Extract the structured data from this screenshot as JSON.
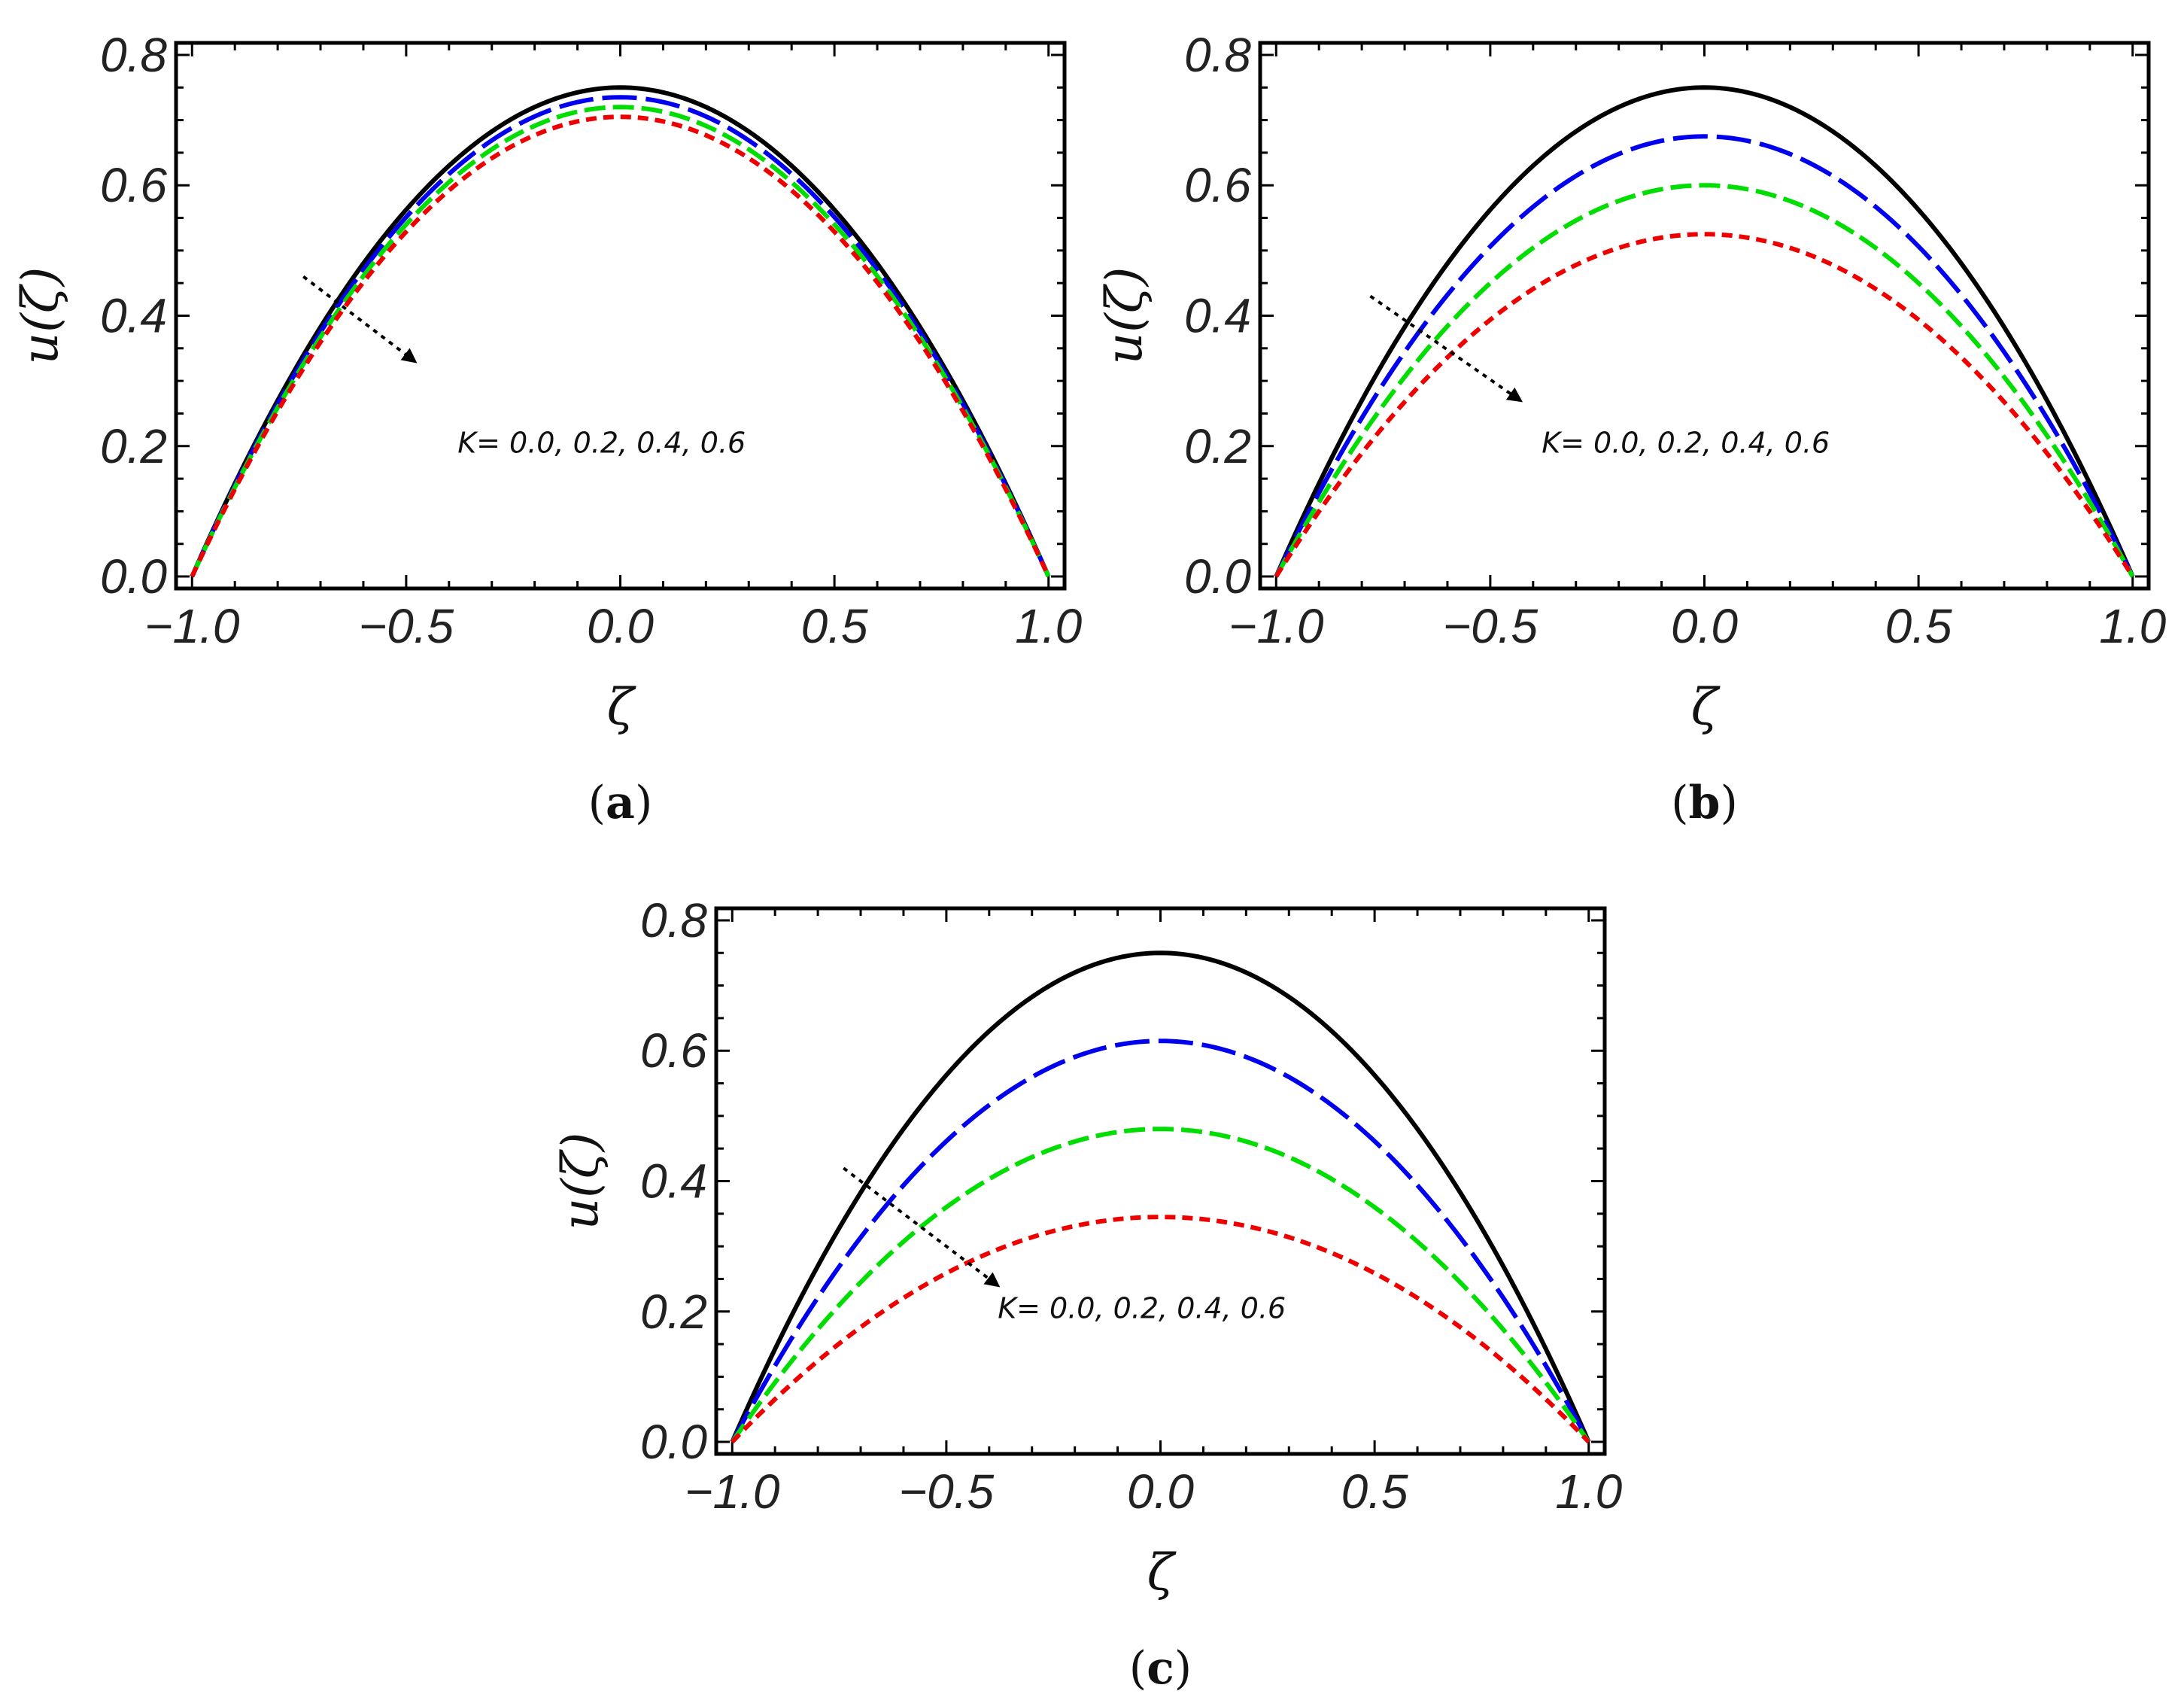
{
  "chart_data": [
    {
      "type": "line",
      "panel_label": "(a)",
      "panel_letter": "a",
      "xlabel": "ζ",
      "ylabel": "u(ζ)",
      "xlim": [
        -1.0,
        1.0
      ],
      "ylim": [
        0.0,
        0.8
      ],
      "xticks": [
        -1.0,
        -0.5,
        0.0,
        0.5,
        1.0
      ],
      "xtick_labels": [
        "−1.0",
        "−0.5",
        "0.0",
        "0.5",
        "1.0"
      ],
      "yticks": [
        0.0,
        0.2,
        0.4,
        0.6,
        0.8
      ],
      "ytick_labels": [
        "0.0",
        "0.2",
        "0.4",
        "0.6",
        "0.8"
      ],
      "annotation": "K= 0.0, 0.2, 0.4, 0.6",
      "arrow": {
        "from": [
          -0.74,
          0.46
        ],
        "to": [
          -0.48,
          0.33
        ]
      },
      "annotation_at": [
        -0.38,
        0.19
      ],
      "series": [
        {
          "name": "K = 0.0",
          "profile": "parabola",
          "peak": 0.75,
          "color": "#000000",
          "dash": "solid"
        },
        {
          "name": "K = 0.2",
          "profile": "parabola",
          "peak": 0.735,
          "color": "#0000ee",
          "dash": "long-dash"
        },
        {
          "name": "K = 0.4",
          "profile": "parabola",
          "peak": 0.72,
          "color": "#00dd00",
          "dash": "dash"
        },
        {
          "name": "K = 0.6",
          "profile": "parabola",
          "peak": 0.705,
          "color": "#ee0000",
          "dash": "short-dash"
        }
      ]
    },
    {
      "type": "line",
      "panel_label": "(b)",
      "panel_letter": "b",
      "xlabel": "ζ",
      "ylabel": "u(ζ)",
      "xlim": [
        -1.0,
        1.0
      ],
      "ylim": [
        0.0,
        0.8
      ],
      "xticks": [
        -1.0,
        -0.5,
        0.0,
        0.5,
        1.0
      ],
      "xtick_labels": [
        "−1.0",
        "−0.5",
        "0.0",
        "0.5",
        "1.0"
      ],
      "yticks": [
        0.0,
        0.2,
        0.4,
        0.6,
        0.8
      ],
      "ytick_labels": [
        "0.0",
        "0.2",
        "0.4",
        "0.6",
        "0.8"
      ],
      "annotation": "K= 0.0, 0.2, 0.4, 0.6",
      "arrow": {
        "from": [
          -0.78,
          0.43
        ],
        "to": [
          -0.43,
          0.27
        ]
      },
      "annotation_at": [
        -0.38,
        0.19
      ],
      "series": [
        {
          "name": "K = 0.0",
          "profile": "parabola",
          "peak": 0.75,
          "color": "#000000",
          "dash": "solid"
        },
        {
          "name": "K = 0.2",
          "profile": "parabola",
          "peak": 0.675,
          "color": "#0000ee",
          "dash": "long-dash"
        },
        {
          "name": "K = 0.4",
          "profile": "parabola",
          "peak": 0.6,
          "color": "#00dd00",
          "dash": "dash"
        },
        {
          "name": "K = 0.6",
          "profile": "parabola",
          "peak": 0.525,
          "color": "#ee0000",
          "dash": "short-dash"
        }
      ]
    },
    {
      "type": "line",
      "panel_label": "(c)",
      "panel_letter": "c",
      "xlabel": "ζ",
      "ylabel": "u(ζ)",
      "xlim": [
        -1.0,
        1.0
      ],
      "ylim": [
        0.0,
        0.8
      ],
      "xticks": [
        -1.0,
        -0.5,
        0.0,
        0.5,
        1.0
      ],
      "xtick_labels": [
        "−1.0",
        "−0.5",
        "0.0",
        "0.5",
        "1.0"
      ],
      "yticks": [
        0.0,
        0.2,
        0.4,
        0.6,
        0.8
      ],
      "ytick_labels": [
        "0.0",
        "0.2",
        "0.4",
        "0.6",
        "0.8"
      ],
      "annotation": "K= 0.0, 0.2, 0.4, 0.6",
      "arrow": {
        "from": [
          -0.74,
          0.42
        ],
        "to": [
          -0.38,
          0.24
        ]
      },
      "annotation_at": [
        -0.38,
        0.19
      ],
      "series": [
        {
          "name": "K = 0.0",
          "profile": "parabola",
          "peak": 0.75,
          "color": "#000000",
          "dash": "solid"
        },
        {
          "name": "K = 0.2",
          "profile": "parabola",
          "peak": 0.615,
          "color": "#0000ee",
          "dash": "long-dash"
        },
        {
          "name": "K = 0.4",
          "profile": "parabola",
          "peak": 0.48,
          "color": "#00dd00",
          "dash": "dash"
        },
        {
          "name": "K = 0.6",
          "profile": "parabola",
          "peak": 0.345,
          "color": "#ee0000",
          "dash": "short-dash"
        }
      ]
    }
  ]
}
